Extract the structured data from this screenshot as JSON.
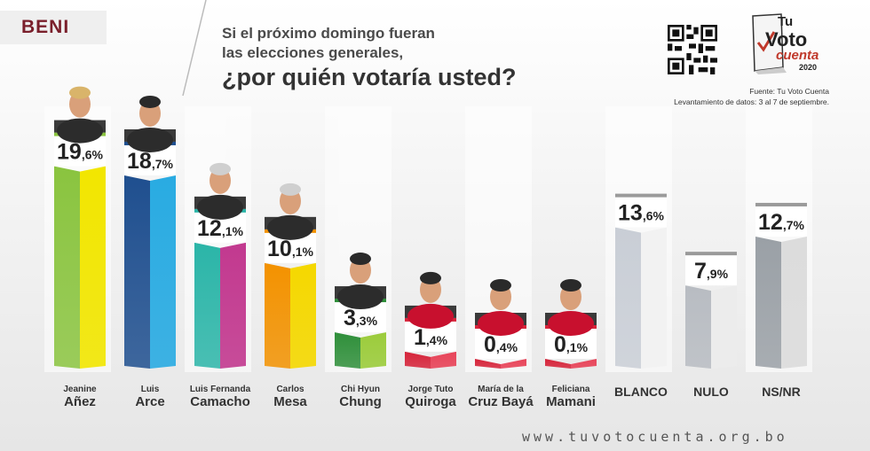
{
  "header": {
    "region": "BENI",
    "question_line1": "Si el próximo domingo fueran",
    "question_line2": "las elecciones generales,",
    "question_line3": "¿por quién votaría usted?",
    "source": "Fuente: Tu Voto Cuenta",
    "survey_dates": "Levantamiento de datos: 3 al 7 de septiembre."
  },
  "logo": {
    "tu": "Tu",
    "voto": "Voto",
    "cuenta": "cuenta",
    "year": "2020"
  },
  "footer": {
    "url": "www.tuvotocuenta.org.bo"
  },
  "colors": {
    "region_text": "#7a1f2b",
    "anez": [
      "#8ac43f",
      "#f2e600"
    ],
    "arce": [
      "#1f4f8f",
      "#29abe2"
    ],
    "camacho": [
      "#2bb5a8",
      "#c2398f"
    ],
    "mesa": [
      "#f39200",
      "#f5d800"
    ],
    "chung": [
      "#2f8f3a",
      "#9ccc3c"
    ],
    "quiroga": [
      "#d6243a",
      "#e8455a"
    ],
    "baya": [
      "#d6243a",
      "#e8455a"
    ],
    "mamani": [
      "#d6243a",
      "#e8455a"
    ],
    "blanco": [
      "#c9ced6",
      "#f2f2f2"
    ],
    "nulo": [
      "#b8bcc2",
      "#ececec"
    ],
    "nsnr": [
      "#9aa0a6",
      "#dcdcdc"
    ]
  },
  "chart_data": {
    "type": "bar",
    "title": "¿por quién votaría usted?",
    "categories": [
      [
        "Jeanine",
        "Añez"
      ],
      [
        "Luis",
        "Arce"
      ],
      [
        "Luis Fernanda",
        "Camacho"
      ],
      [
        "Carlos",
        "Mesa"
      ],
      [
        "Chi Hyun",
        "Chung"
      ],
      [
        "Jorge Tuto",
        "Quiroga"
      ],
      [
        "María de la",
        "Cruz Bayá"
      ],
      [
        "Feliciana",
        "Mamani"
      ],
      [
        "",
        "BLANCO"
      ],
      [
        "",
        "NULO"
      ],
      [
        "",
        "NS/NR"
      ]
    ],
    "values": [
      19.6,
      18.7,
      12.1,
      10.1,
      3.3,
      1.4,
      0.4,
      0.1,
      13.6,
      7.9,
      12.7
    ],
    "labels": [
      [
        "19",
        ",6%"
      ],
      [
        "18",
        ",7%"
      ],
      [
        "12",
        ",1%"
      ],
      [
        "10",
        ",1%"
      ],
      [
        "3",
        ",3%"
      ],
      [
        "1",
        ",4%"
      ],
      [
        "0",
        ",4%"
      ],
      [
        "0",
        ",1%"
      ],
      [
        "13",
        ",6%"
      ],
      [
        "7",
        ",9%"
      ],
      [
        "12",
        ",7%"
      ]
    ],
    "keys": [
      "anez",
      "arce",
      "camacho",
      "mesa",
      "chung",
      "quiroga",
      "baya",
      "mamani",
      "blanco",
      "nulo",
      "nsnr"
    ],
    "has_photo": [
      true,
      true,
      true,
      true,
      true,
      true,
      true,
      true,
      false,
      false,
      false
    ],
    "ylim": [
      0,
      20
    ],
    "grid": false,
    "legend": "none"
  }
}
